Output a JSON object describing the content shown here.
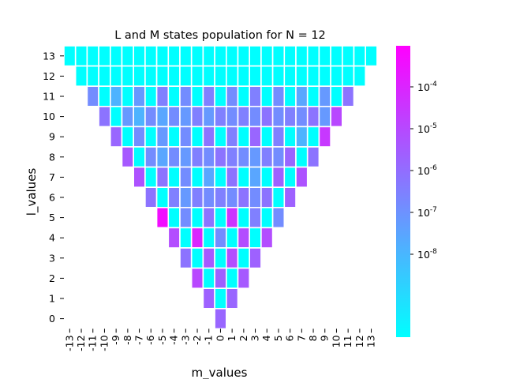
{
  "chart_data": {
    "type": "heatmap",
    "title": "L and M states population for N = 12",
    "xlabel": "m_values",
    "ylabel": "l_values",
    "x_ticks": [
      "-13",
      "-12",
      "-11",
      "-10",
      "-9",
      "-8",
      "-7",
      "-6",
      "-5",
      "-4",
      "-3",
      "-2",
      "-1",
      "0",
      "1",
      "2",
      "3",
      "4",
      "5",
      "6",
      "7",
      "8",
      "9",
      "10",
      "11",
      "12",
      "13"
    ],
    "y_ticks": [
      "13",
      "12",
      "11",
      "10",
      "9",
      "8",
      "7",
      "6",
      "5",
      "4",
      "3",
      "2",
      "1",
      "0"
    ],
    "colorbar": {
      "scale": "log",
      "ticks": [
        "10^-8",
        "10^-7",
        "10^-6",
        "10^-5",
        "10^-4"
      ],
      "colormap": "cool",
      "color_low": "#00ffff",
      "color_high": "#ff00ff"
    },
    "cell_color_level_by_row": {
      "13": [
        0,
        0,
        0,
        0,
        0,
        0,
        0,
        0,
        0,
        0,
        0,
        0,
        0,
        0,
        0,
        0,
        0,
        0,
        0,
        0,
        0,
        0,
        0,
        0,
        0,
        0,
        0
      ],
      "12": [
        0,
        0,
        0,
        0,
        0,
        0,
        0,
        0,
        0,
        0,
        0,
        0,
        0,
        0,
        0,
        0,
        0,
        0,
        0,
        0,
        0,
        0,
        0,
        0,
        0
      ],
      "11": [
        0.45,
        0,
        0.3,
        0,
        0.4,
        0,
        0.5,
        0,
        0.45,
        0,
        0.5,
        0,
        0.45,
        0,
        0.5,
        0,
        0.45,
        0,
        0.35,
        0,
        0.4,
        0,
        0.55
      ],
      "10": [
        0.55,
        0,
        0.4,
        0.3,
        0.45,
        0.35,
        0.45,
        0.4,
        0.5,
        0.4,
        0.5,
        0.45,
        0.5,
        0.45,
        0.55,
        0.45,
        0.5,
        0.45,
        0.55,
        0.4,
        0.72
      ],
      "9": [
        0.6,
        0,
        0.45,
        0,
        0.4,
        0,
        0.45,
        0,
        0.55,
        0,
        0.5,
        0,
        0.6,
        0,
        0.5,
        0,
        0.3,
        0,
        0.78
      ],
      "8": [
        0.65,
        0,
        0.45,
        0.35,
        0.45,
        0.4,
        0.5,
        0.45,
        0.55,
        0.5,
        0.45,
        0.4,
        0.5,
        0.45,
        0.6,
        0,
        0.55
      ],
      "7": [
        0.68,
        0,
        0.55,
        0,
        0.45,
        0,
        0.35,
        0,
        0.55,
        0,
        0.35,
        0,
        0.62,
        0,
        0.68
      ],
      "6": [
        0.55,
        0,
        0.5,
        0.4,
        0.5,
        0.45,
        0.5,
        0.45,
        0.55,
        0.45,
        0.55,
        0,
        0.62
      ],
      "5": [
        0.95,
        0,
        0.45,
        0,
        0.55,
        0,
        0.8,
        0,
        0.5,
        0,
        0.45
      ],
      "4": [
        0.7,
        0,
        0.85,
        0,
        0.45,
        0,
        0.7,
        0,
        0.7
      ],
      "3": [
        0.55,
        0,
        0.65,
        0,
        0.7,
        0,
        0.62
      ],
      "2": [
        0.72,
        0,
        0.62,
        0,
        0.65
      ],
      "1": [
        0.62,
        0,
        0.6
      ],
      "0": [
        0.6
      ]
    }
  }
}
